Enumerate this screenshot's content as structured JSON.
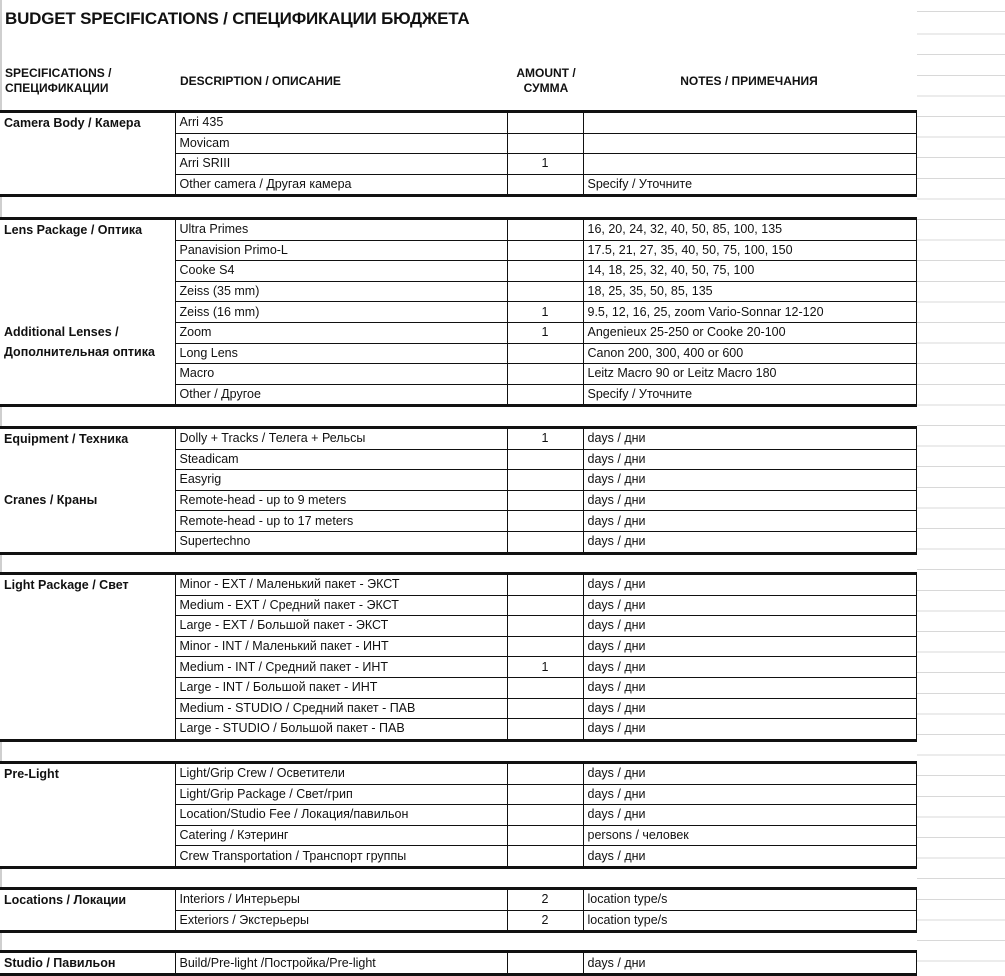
{
  "title": "BUDGET SPECIFICATIONS / СПЕЦИФИКАЦИИ БЮДЖЕТА",
  "headers": {
    "spec": "SPECIFICATIONS / СПЕЦИФИКАЦИИ",
    "desc": "DESCRIPTION / ОПИСАНИЕ",
    "amount": "AMOUNT / СУММА",
    "notes": "NOTES / ПРИМЕЧАНИЯ"
  },
  "groups": [
    {
      "categories": [
        {
          "name": "Camera Body / Камера",
          "rows": [
            {
              "desc": "Arri 435",
              "amount": "",
              "notes": ""
            },
            {
              "desc": "Movicam",
              "amount": "",
              "notes": ""
            },
            {
              "desc": "Arri SRIII",
              "amount": "1",
              "notes": ""
            },
            {
              "desc": "Other camera / Другая камера",
              "amount": "",
              "notes": "Specify / Уточните"
            }
          ]
        }
      ]
    },
    {
      "categories": [
        {
          "name": "Lens Package / Оптика",
          "rows": [
            {
              "desc": "Ultra Primes",
              "amount": "",
              "notes": "16, 20, 24, 32, 40, 50, 85, 100, 135"
            },
            {
              "desc": "Panavision Primo-L",
              "amount": "",
              "notes": "17.5, 21, 27, 35, 40, 50, 75, 100, 150"
            },
            {
              "desc": "Cooke S4",
              "amount": "",
              "notes": "14, 18, 25, 32, 40, 50, 75, 100"
            },
            {
              "desc": "Zeiss (35 mm)",
              "amount": "",
              "notes": "18, 25, 35, 50, 85, 135"
            },
            {
              "desc": "Zeiss (16 mm)",
              "amount": "1",
              "notes": "9.5, 12, 16, 25, zoom Vario-Sonnar 12-120"
            }
          ]
        },
        {
          "name": "Additional Lenses / Дополнительная оптика",
          "rows": [
            {
              "desc": "Zoom",
              "amount": "1",
              "notes": "Angenieux 25-250 or Cooke 20-100"
            },
            {
              "desc": "Long Lens",
              "amount": "",
              "notes": "Canon 200, 300, 400 or 600"
            },
            {
              "desc": "Macro",
              "amount": "",
              "notes": "Leitz Macro 90 or Leitz Macro 180"
            },
            {
              "desc": "Other / Другое",
              "amount": "",
              "notes": "Specify / Уточните"
            }
          ]
        }
      ]
    },
    {
      "categories": [
        {
          "name": "Equipment / Техника",
          "rows": [
            {
              "desc": "Dolly + Tracks / Телега + Рельсы",
              "amount": "1",
              "notes": "days / дни"
            },
            {
              "desc": "Steadicam",
              "amount": "",
              "notes": "days / дни"
            },
            {
              "desc": "Easyrig",
              "amount": "",
              "notes": "days / дни"
            }
          ]
        },
        {
          "name": "Cranes / Краны",
          "rows": [
            {
              "desc": "Remote-head - up to 9 meters",
              "amount": "",
              "notes": "days / дни"
            },
            {
              "desc": "Remote-head - up to 17 meters",
              "amount": "",
              "notes": "days / дни"
            },
            {
              "desc": "Supertechno",
              "amount": "",
              "notes": "days / дни"
            }
          ]
        }
      ]
    },
    {
      "categories": [
        {
          "name": "Light Package / Свет",
          "rows": [
            {
              "desc": "Minor - EXT / Маленький пакет - ЭКСТ",
              "amount": "",
              "notes": "days / дни"
            },
            {
              "desc": "Medium - EXT / Средний пакет - ЭКСТ",
              "amount": "",
              "notes": "days / дни"
            },
            {
              "desc": "Large - EXT / Большой пакет - ЭКСТ",
              "amount": "",
              "notes": "days / дни"
            },
            {
              "desc": "Minor - INT / Маленький пакет - ИНТ",
              "amount": "",
              "notes": "days / дни"
            },
            {
              "desc": "Medium - INT / Средний пакет - ИНТ",
              "amount": "1",
              "notes": "days / дни"
            },
            {
              "desc": "Large - INT / Большой пакет - ИНТ",
              "amount": "",
              "notes": "days / дни"
            },
            {
              "desc": "Medium - STUDIO / Средний пакет - ПАВ",
              "amount": "",
              "notes": "days / дни"
            },
            {
              "desc": "Large - STUDIO / Большой пакет - ПАВ",
              "amount": "",
              "notes": "days / дни"
            }
          ]
        }
      ]
    },
    {
      "categories": [
        {
          "name": "Pre-Light",
          "rows": [
            {
              "desc": "Light/Grip Crew / Осветители",
              "amount": "",
              "notes": "days / дни"
            },
            {
              "desc": "Light/Grip Package / Свет/грип",
              "amount": "",
              "notes": "days / дни"
            },
            {
              "desc": "Location/Studio Fee / Локация/павильон",
              "amount": "",
              "notes": "days / дни"
            },
            {
              "desc": "Catering / Кэтеринг",
              "amount": "",
              "notes": "persons / человек"
            },
            {
              "desc": "Crew Transportation / Транспорт группы",
              "amount": "",
              "notes": "days / дни"
            }
          ]
        }
      ]
    },
    {
      "categories": [
        {
          "name": "Locations / Локации",
          "rows": [
            {
              "desc": "Interiors / Интерьеры",
              "amount": "2",
              "notes": "location type/s"
            },
            {
              "desc": "Exteriors / Экстерьеры",
              "amount": "2",
              "notes": "location type/s"
            }
          ]
        }
      ]
    },
    {
      "categories": [
        {
          "name": "Studio / Павильон",
          "rows": [
            {
              "desc": "Build/Pre-light /Постройка/Pre-light",
              "amount": "",
              "notes": "days / дни"
            }
          ]
        }
      ]
    }
  ]
}
